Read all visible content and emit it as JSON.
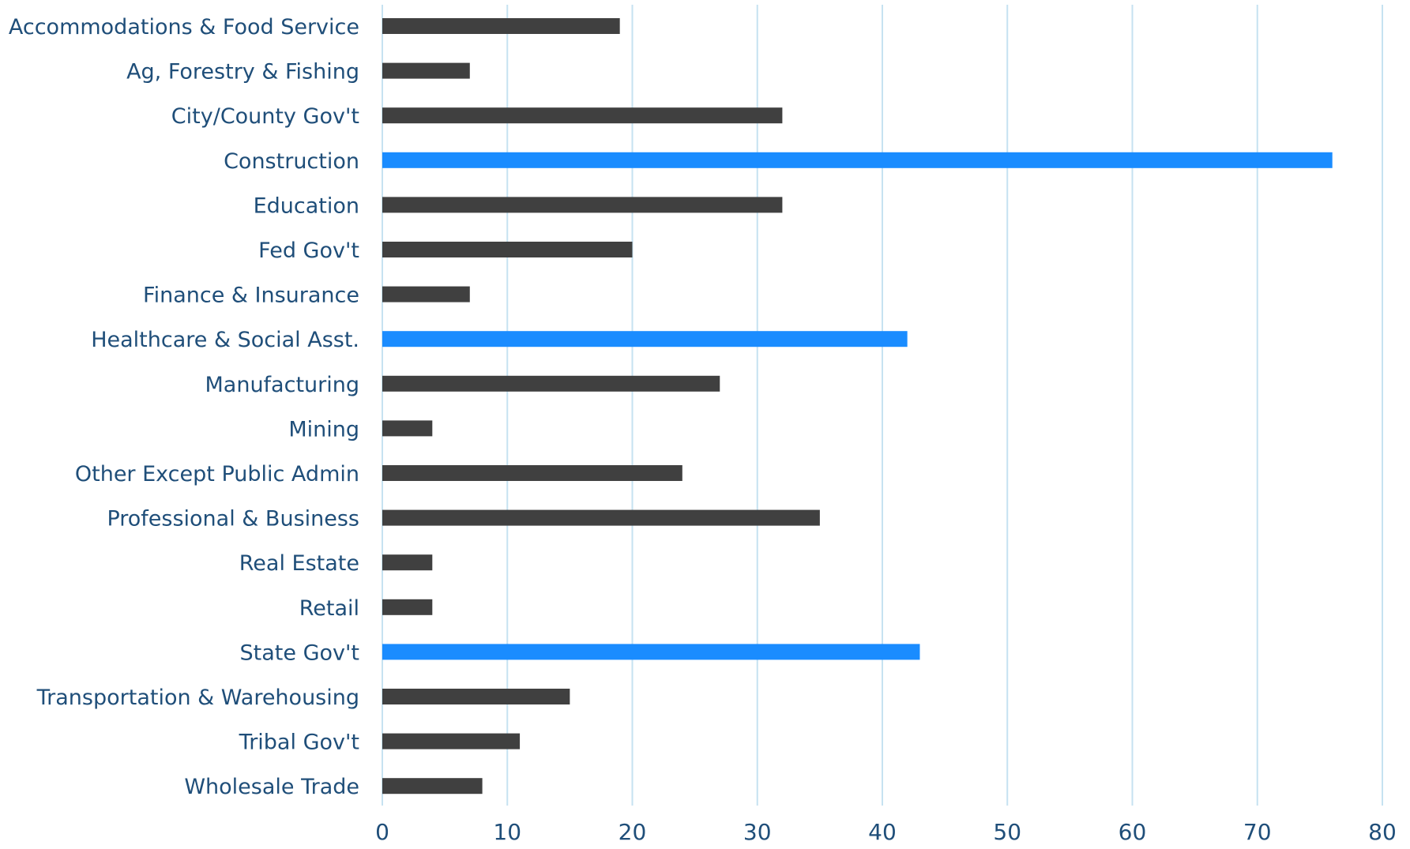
{
  "chart_data": {
    "type": "bar",
    "orientation": "horizontal",
    "title": "",
    "xlabel": "",
    "ylabel": "",
    "categories": [
      "Accommodations & Food Service",
      "Ag, Forestry & Fishing",
      "City/County Gov't",
      "Construction",
      "Education",
      "Fed Gov't",
      "Finance & Insurance",
      "Healthcare & Social Asst.",
      "Manufacturing",
      "Mining",
      "Other Except Public Admin",
      "Professional & Business",
      "Real Estate",
      "Retail",
      "State Gov't",
      "Transportation & Warehousing",
      "Tribal Gov't",
      "Wholesale Trade"
    ],
    "values": [
      19,
      7,
      32,
      76,
      32,
      20,
      7,
      42,
      27,
      4,
      24,
      35,
      4,
      4,
      43,
      15,
      11,
      8
    ],
    "highlighted": [
      false,
      false,
      false,
      true,
      false,
      false,
      false,
      true,
      false,
      false,
      false,
      false,
      false,
      false,
      true,
      false,
      false,
      false
    ],
    "xlim": [
      0,
      80
    ],
    "xticks": [
      "0",
      "10",
      "20",
      "30",
      "40",
      "50",
      "60",
      "70",
      "80"
    ],
    "grid": "vertical",
    "legend": "none",
    "colors": {
      "bar": "#404040",
      "highlight": "#1a8cff",
      "grid": "#c6e2f1",
      "text": "#1f4e79"
    }
  }
}
